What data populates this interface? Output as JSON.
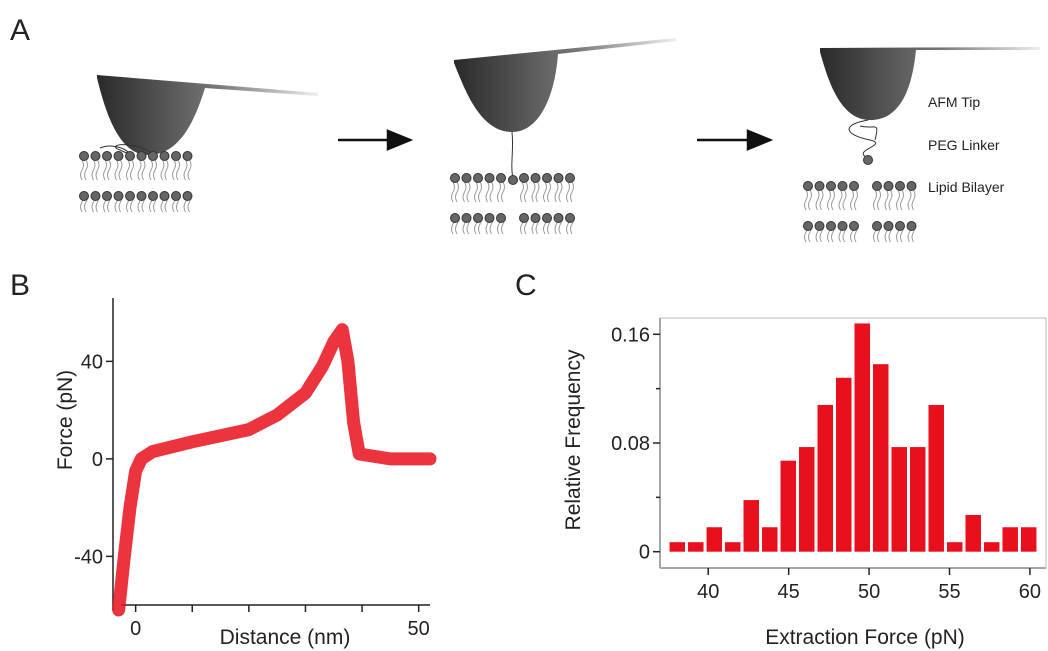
{
  "panel_labels": {
    "a": "A",
    "b": "B",
    "c": "C"
  },
  "diagram": {
    "labels": [
      "AFM Tip",
      "PEG Linker",
      "Lipid Bilayer"
    ]
  },
  "chart_data": [
    {
      "type": "line",
      "xlabel": "Distance (nm)",
      "ylabel": "Force (pN)",
      "x": [
        -3,
        -2,
        -1,
        0,
        1,
        3,
        10,
        20,
        25,
        30,
        33,
        35,
        36.5,
        37.5,
        38.5,
        39.5,
        45,
        52
      ],
      "values": [
        -62,
        -40,
        -20,
        -5,
        0,
        3,
        7,
        12,
        18,
        27,
        38,
        48,
        53,
        40,
        15,
        2,
        0,
        0
      ],
      "color": "#e8101c",
      "xlim": [
        -4,
        52
      ],
      "ylim": [
        -62,
        66
      ],
      "xticks": [
        0,
        50
      ],
      "xminor": [
        10,
        20,
        30,
        40
      ],
      "yticks": [
        -40,
        0,
        40
      ]
    },
    {
      "type": "histogram",
      "xlabel": "Extraction Force (pN)",
      "ylabel": "Relative Frequency",
      "bins": [
        37.5,
        38.65,
        39.8,
        40.95,
        42.1,
        43.25,
        44.4,
        45.55,
        46.7,
        47.85,
        49,
        50.15,
        51.3,
        52.45,
        53.6,
        54.75,
        55.9,
        57.05,
        58.2,
        59.35,
        60.5
      ],
      "values": [
        0.007,
        0.007,
        0.018,
        0.007,
        0.038,
        0.018,
        0.067,
        0.077,
        0.108,
        0.128,
        0.168,
        0.138,
        0.077,
        0.077,
        0.108,
        0.007,
        0.027,
        0.007,
        0.018,
        0.018
      ],
      "color": "#e8101c",
      "xlim": [
        37,
        61
      ],
      "ylim": [
        -0.012,
        0.172
      ],
      "xticks": [
        40,
        45,
        50,
        55,
        60
      ],
      "yticks": [
        0,
        0.08,
        0.16
      ],
      "yminor": [
        0.04,
        0.12
      ]
    }
  ]
}
